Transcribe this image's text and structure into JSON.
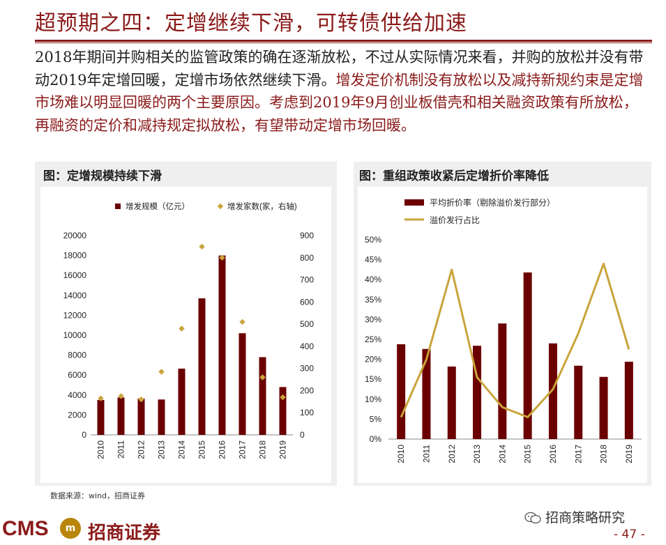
{
  "header": {
    "title": "超预期之四：定增继续下滑，可转债供给加速"
  },
  "body": {
    "normal": "2018年期间并购相关的监管政策的确在逐渐放松，不过从实际情况来看，并购的放松并没有带动2019年定增回暖，定增市场依然继续下滑。",
    "highlight": "增发定价机制没有放松以及减持新规约束是定增市场难以明显回暖的两个主要原因。考虑到2019年9月创业板借壳和相关融资政策有所放松，再融资的定价和减持规定拟放松，有望带动定增市场回暖。"
  },
  "left_panel": {
    "title": "图：定增规模持续下滑"
  },
  "right_panel": {
    "title": "图：重组政策收紧后定增折价率降低"
  },
  "footer": {
    "source": "数据来源：wind，招商证券",
    "logo_text": "CMS",
    "logo_badge": "m",
    "company": "招商证券",
    "wechat": "招商策略研究",
    "page": "- 47 -"
  },
  "colors": {
    "bar": "#6B0000",
    "marker": "#C9A43B",
    "line": "#C9A43B",
    "accent": "#8B1A1A"
  },
  "chart_data": [
    {
      "type": "bar",
      "title": "图：定增规模持续下滑",
      "categories": [
        "2010",
        "2011",
        "2012",
        "2013",
        "2014",
        "2015",
        "2016",
        "2017",
        "2018",
        "2019"
      ],
      "series": [
        {
          "name": "增发规模（亿元）",
          "kind": "bar",
          "axis": "left",
          "values": [
            3500,
            3750,
            3650,
            3550,
            6650,
            13700,
            18000,
            10200,
            7800,
            4800
          ]
        },
        {
          "name": "增发家数(家，右轴)",
          "kind": "scatter",
          "axis": "right",
          "values": [
            165,
            175,
            160,
            285,
            480,
            850,
            800,
            510,
            260,
            170
          ]
        }
      ],
      "yleft": {
        "min": 0,
        "max": 20000,
        "ticks": [
          0,
          2000,
          4000,
          6000,
          8000,
          10000,
          12000,
          14000,
          16000,
          18000,
          20000
        ]
      },
      "yright": {
        "min": 0,
        "max": 900,
        "ticks": [
          0,
          100,
          200,
          300,
          400,
          500,
          600,
          700,
          800,
          900
        ]
      },
      "legend": "top-center"
    },
    {
      "type": "bar",
      "title": "图：重组政策收紧后定增折价率降低",
      "categories": [
        "2010",
        "2011",
        "2012",
        "2013",
        "2014",
        "2015",
        "2016",
        "2017",
        "2018",
        "2019"
      ],
      "series": [
        {
          "name": "平均折价率（剔除溢价发行部分）",
          "kind": "bar",
          "values": [
            23.8,
            22.6,
            18.2,
            23.4,
            29.0,
            41.8,
            24.0,
            18.4,
            15.6,
            19.4
          ]
        },
        {
          "name": "溢价发行占比",
          "kind": "line",
          "values": [
            5.5,
            20.0,
            42.5,
            15.5,
            8.0,
            5.5,
            12.5,
            26.5,
            44.0,
            22.5
          ]
        }
      ],
      "y": {
        "min": 0,
        "max": 50,
        "ticks": [
          "0%",
          "5%",
          "10%",
          "15%",
          "20%",
          "25%",
          "30%",
          "35%",
          "40%",
          "45%",
          "50%"
        ]
      },
      "legend": "top-left"
    }
  ]
}
